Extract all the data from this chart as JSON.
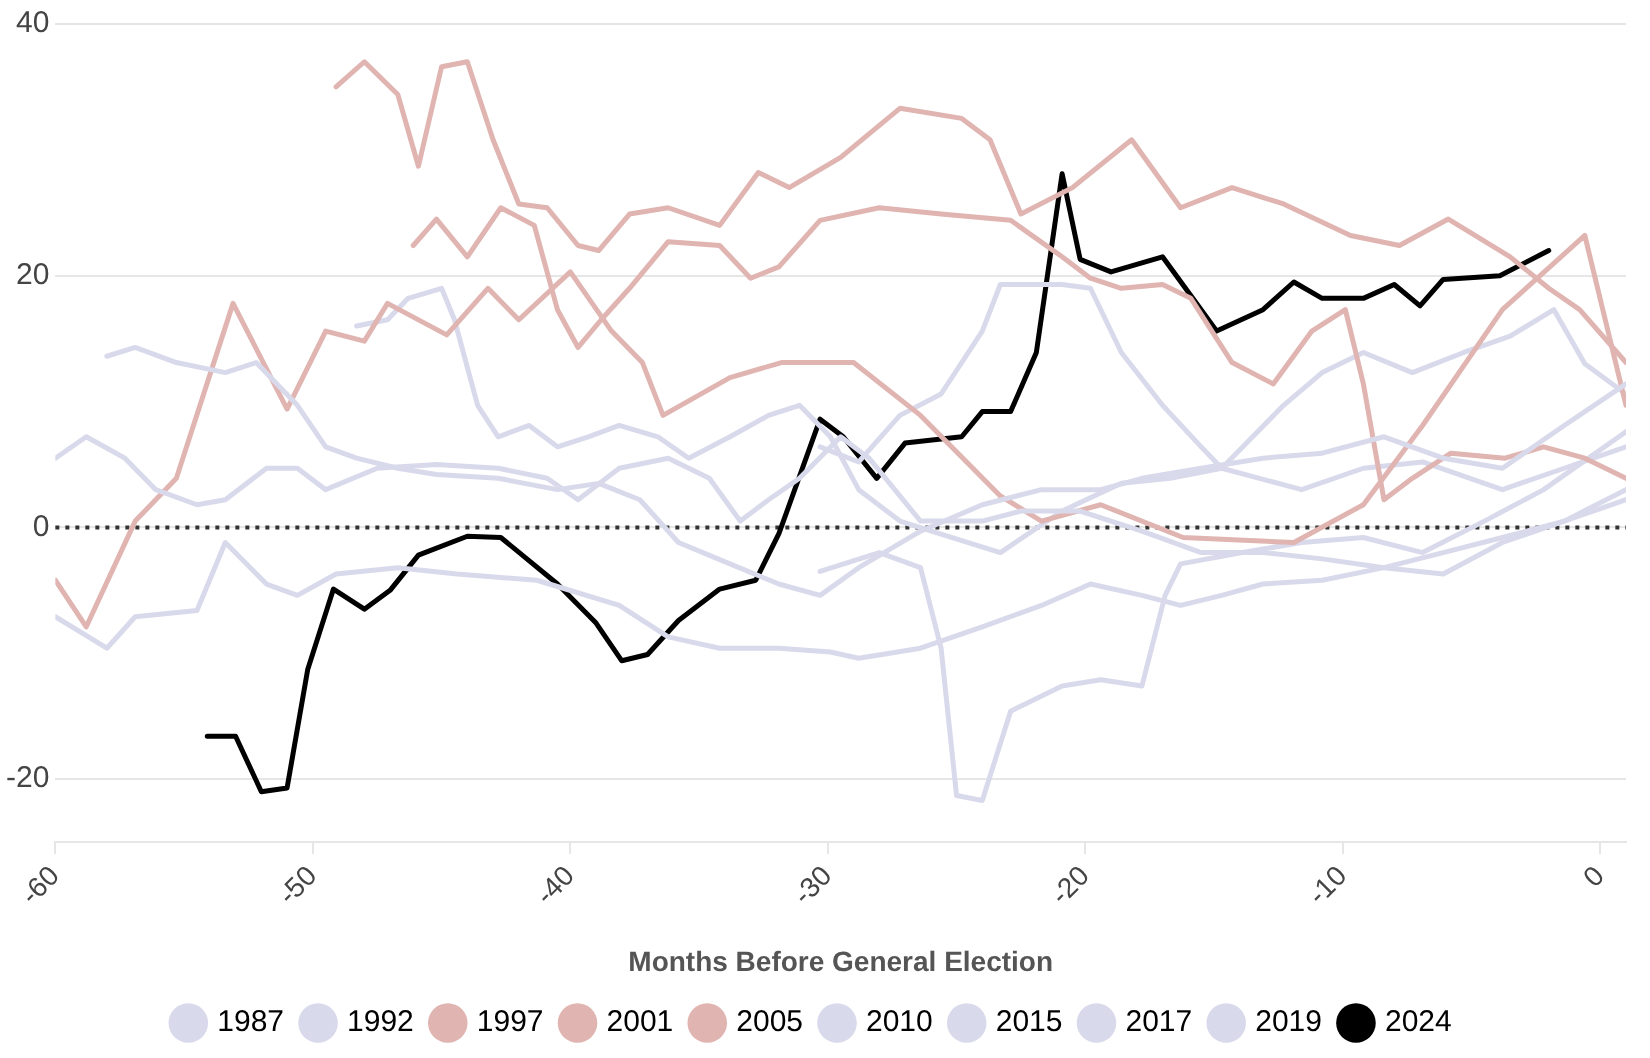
{
  "chart_data": {
    "type": "line",
    "xlabel": "Months Before General Election",
    "xlim": [
      -60,
      1
    ],
    "xticks": [
      -60,
      -50,
      -40,
      -30,
      -20,
      -10,
      0
    ],
    "ylim": [
      -25,
      40
    ],
    "yticks": [
      -20,
      0,
      20,
      40
    ],
    "grid": "y",
    "legend": "bottom",
    "marker": "none",
    "line_style": "solid",
    "ref_lines": [
      {
        "axis": "y",
        "value": 0,
        "line_style": "dotted",
        "color": "#333333"
      }
    ],
    "series": [
      {
        "name": "1987",
        "color": "#d9d9ec",
        "x": [
          -60,
          -58.8,
          -57.3,
          -56.1,
          -54.5,
          -53.4,
          -51.8,
          -50.6,
          -49.5,
          -47.5,
          -45.2,
          -42.8,
          -40.9,
          -39.7,
          -38.1,
          -36.2,
          -34.6,
          -33.4,
          -32.3,
          -31.1,
          -29.5,
          -28.4,
          -26.4,
          -24,
          -22.5,
          -20.2,
          -17.8,
          -15.5,
          -13.1,
          -10.8,
          -8.4,
          -6.1,
          -3.8,
          -1.4,
          1
        ],
        "values": [
          5.5,
          7.2,
          5.5,
          3,
          1.8,
          2.2,
          4.7,
          4.7,
          3,
          4.7,
          5,
          4.7,
          3.9,
          2.2,
          4.7,
          5.5,
          3.9,
          0.5,
          2.2,
          3.9,
          7.2,
          5.5,
          0.5,
          0.5,
          1.3,
          1.3,
          -0.3,
          -2,
          -2,
          -2.5,
          -3.2,
          -2,
          -0.8,
          0.5,
          2.2
        ]
      },
      {
        "name": "1992",
        "color": "#d9d9ec",
        "x": [
          -58,
          -56.9,
          -55.3,
          -53.4,
          -52.2,
          -50.6,
          -49.5,
          -48.3,
          -46.7,
          -45.2,
          -42.8,
          -40.5,
          -38.9,
          -37.3,
          -35.8,
          -33.8,
          -31.9,
          -30.3,
          -28.8,
          -26.4,
          -24,
          -21.7,
          -19.4,
          -17.8,
          -15.5,
          -13.1,
          -10.8,
          -8.4,
          -6.1,
          -3.8,
          -1.4,
          1
        ],
        "values": [
          13.6,
          14.3,
          13.1,
          12.3,
          13.1,
          9.7,
          6.4,
          5.5,
          4.7,
          4.2,
          3.9,
          3,
          3.5,
          2.2,
          -1.2,
          -2.9,
          -4.5,
          -5.4,
          -3.2,
          -0.3,
          1.8,
          3,
          3,
          3.9,
          4.7,
          5.5,
          5.9,
          7.2,
          5.5,
          4.7,
          8.1,
          11.4
        ]
      },
      {
        "name": "1997",
        "color": "#e0b4b0",
        "x": [
          -49.1,
          -48,
          -46.7,
          -45.9,
          -45,
          -44,
          -43,
          -42,
          -40.9,
          -39.7,
          -38.9,
          -37.7,
          -36.2,
          -34.2,
          -32.7,
          -31.5,
          -29.5,
          -27.2,
          -24.8,
          -23.7,
          -22.5,
          -20.5,
          -18.2,
          -16.3,
          -14.3,
          -12.3,
          -9.7,
          -7.8,
          -5.9,
          -3.5,
          -2,
          -0.8,
          1
        ],
        "values": [
          35,
          37,
          34.4,
          28.7,
          36.6,
          37,
          30.8,
          25.7,
          25.4,
          22.4,
          22,
          24.9,
          25.4,
          24,
          28.2,
          27,
          29.4,
          33.3,
          32.5,
          30.8,
          24.9,
          27,
          30.8,
          25.4,
          27,
          25.7,
          23.2,
          22.4,
          24.5,
          21.5,
          19,
          17.3,
          13.1
        ]
      },
      {
        "name": "2001",
        "color": "#e0b4b0",
        "x": [
          -46.1,
          -45.2,
          -44,
          -42.7,
          -41.4,
          -40.5,
          -39.7,
          -38.8,
          -37.7,
          -36.2,
          -34.2,
          -33,
          -31.9,
          -30.3,
          -28,
          -25.6,
          -22.9,
          -20.9,
          -19.8,
          -18.6,
          -17,
          -15.9,
          -14.3,
          -12.7,
          -11.2,
          -9.9,
          -9.2,
          -8.4,
          -7.3,
          -5.8,
          -3.7,
          -2.2,
          -0.6,
          1
        ],
        "values": [
          22.4,
          24.5,
          21.5,
          25.4,
          24,
          17.3,
          14.3,
          16.5,
          19,
          22.7,
          22.4,
          19.8,
          20.7,
          24.4,
          25.4,
          24.9,
          24.4,
          21.5,
          19.8,
          19,
          19.3,
          18.2,
          13.1,
          11.4,
          15.6,
          17.3,
          11.4,
          2.2,
          3.9,
          5.9,
          5.5,
          6.4,
          5.5,
          3.9
        ]
      },
      {
        "name": "2005",
        "color": "#e0b4b0",
        "x": [
          -60,
          -58.8,
          -56.9,
          -55.3,
          -53.1,
          -51,
          -49.5,
          -48,
          -47.1,
          -44.8,
          -43.2,
          -42,
          -40,
          -38.4,
          -37.2,
          -36.4,
          -33.8,
          -31.8,
          -29,
          -26.4,
          -23.3,
          -21.7,
          -19.4,
          -16.2,
          -11.9,
          -9.2,
          -6.9,
          -3.8,
          -0.6,
          1
        ],
        "values": [
          -4.2,
          -7.9,
          0.5,
          3.9,
          17.8,
          9.4,
          15.6,
          14.8,
          17.8,
          15.3,
          19,
          16.5,
          20.3,
          15.6,
          13.1,
          8.9,
          11.9,
          13.1,
          13.1,
          8.9,
          2.5,
          0.5,
          1.8,
          -0.8,
          -1.2,
          1.8,
          8.1,
          17.3,
          23.2,
          9.7
        ]
      },
      {
        "name": "2010",
        "color": "#d9d9ec",
        "x": [
          -60,
          -58,
          -56.9,
          -54.5,
          -53.4,
          -51.8,
          -50.6,
          -49.1,
          -46.7,
          -44.4,
          -41.3,
          -38.1,
          -36.2,
          -34.2,
          -31.9,
          -29.9,
          -28.8,
          -26.4,
          -24,
          -21.7,
          -19.8,
          -17.8,
          -16.3,
          -14.7,
          -13.1,
          -10.8,
          -8.4,
          -6.1,
          -3.8,
          -1.4,
          1
        ],
        "values": [
          -7.1,
          -9.6,
          -7.1,
          -6.6,
          -1.2,
          -4.5,
          -5.4,
          -3.7,
          -3.2,
          -3.7,
          -4.2,
          -6.2,
          -8.7,
          -9.6,
          -9.6,
          -9.9,
          -10.4,
          -9.6,
          -7.9,
          -6.2,
          -4.5,
          -5.4,
          -6.2,
          -5.4,
          -4.5,
          -4.2,
          -3.2,
          -3.7,
          -1.2,
          0.5,
          3
        ]
      },
      {
        "name": "2015",
        "color": "#d9d9ec",
        "x": [
          -48.3,
          -47.1,
          -46.3,
          -45,
          -44.5,
          -43.6,
          -42.8,
          -41.6,
          -40.5,
          -39.3,
          -38.1,
          -36.6,
          -35.4,
          -33.8,
          -32.3,
          -31.1,
          -29.9,
          -28.8,
          -27.2,
          -25.2,
          -23.3,
          -20.9,
          -18.6,
          -16.7,
          -14.7,
          -11.6,
          -9.2,
          -6.9,
          -3.8,
          -1.4,
          1
        ],
        "values": [
          16,
          16.5,
          18.2,
          19,
          16.5,
          9.7,
          7.2,
          8.1,
          6.4,
          7.2,
          8.1,
          7.2,
          5.5,
          7.2,
          8.9,
          9.7,
          7.2,
          3,
          0.5,
          -0.8,
          -2,
          1.3,
          3.5,
          3.9,
          4.7,
          3,
          4.7,
          5.2,
          3,
          4.7,
          6.4
        ]
      },
      {
        "name": "2017",
        "color": "#d9d9ec",
        "x": [
          -30.3,
          -28.8,
          -27.2,
          -25.6,
          -24,
          -23.3,
          -20.9,
          -19.8,
          -18.6,
          -17,
          -15.5,
          -14.7,
          -13.5,
          -12.3,
          -10.8,
          -9.2,
          -7.3,
          -5.3,
          -3.5,
          -1.8,
          -0.6,
          1
        ],
        "values": [
          6.4,
          5.2,
          8.9,
          10.6,
          15.6,
          19.3,
          19.3,
          19,
          13.9,
          9.7,
          6.4,
          4.7,
          7.2,
          9.7,
          12.3,
          13.9,
          12.3,
          13.9,
          15.2,
          17.3,
          13,
          10.6
        ]
      },
      {
        "name": "2019",
        "color": "#d9d9ec",
        "x": [
          -30.3,
          -28,
          -26.4,
          -25.6,
          -25,
          -24,
          -22.9,
          -20.9,
          -19.4,
          -17.8,
          -16.9,
          -16.3,
          -13.9,
          -11.6,
          -9.2,
          -6.9,
          -4.5,
          -2.2,
          1
        ],
        "values": [
          -3.5,
          -2,
          -3.2,
          -9.6,
          -21.3,
          -21.7,
          -14.6,
          -12.6,
          -12.1,
          -12.6,
          -5.4,
          -2.9,
          -2,
          -1.2,
          -0.8,
          -2,
          0.5,
          3,
          7.6
        ]
      },
      {
        "name": "2024",
        "color": "#000000",
        "x": [
          -54.1,
          -53,
          -52,
          -51,
          -50.2,
          -49.2,
          -48,
          -47,
          -45.9,
          -44,
          -42.7,
          -40.5,
          -39,
          -38,
          -37,
          -35.8,
          -34.2,
          -32.8,
          -31.9,
          -30.3,
          -29.4,
          -28.1,
          -27,
          -24.8,
          -24,
          -22.9,
          -21.9,
          -20.9,
          -20.2,
          -19,
          -17,
          -14.9,
          -13.1,
          -11.9,
          -10.8,
          -9.2,
          -8,
          -7,
          -6.1,
          -3.9,
          -2
        ],
        "values": [
          -16.6,
          -16.6,
          -21,
          -20.7,
          -11.3,
          -4.9,
          -6.5,
          -5,
          -2.2,
          -0.7,
          -0.8,
          -4.5,
          -7.6,
          -10.6,
          -10.1,
          -7.4,
          -4.9,
          -4.2,
          -0.5,
          8.6,
          7.2,
          3.9,
          6.7,
          7.2,
          9.2,
          9.2,
          13.9,
          28.1,
          21.3,
          20.3,
          21.5,
          15.6,
          17.3,
          19.5,
          18.2,
          18.2,
          19.3,
          17.6,
          19.7,
          20,
          22
        ]
      }
    ]
  }
}
